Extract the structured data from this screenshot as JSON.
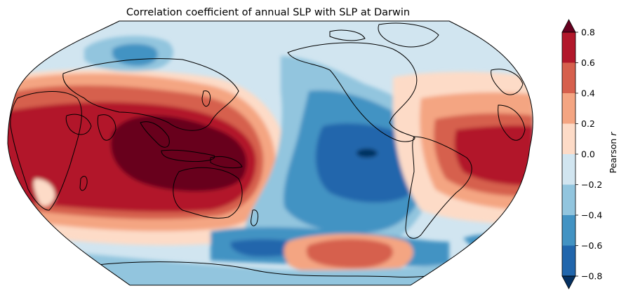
{
  "map": {
    "title": "Correlation coefficient of annual SLP with SLP at Darwin",
    "projection": "Robinson",
    "center_longitude": 180,
    "variable": "SLP",
    "reference_point": "Darwin"
  },
  "colorbar": {
    "label_main": "Pearson ",
    "label_symbol": "r",
    "min": -0.8,
    "max": 0.8,
    "extend": "both",
    "ticks": [
      "−0.8",
      "−0.6",
      "−0.4",
      "−0.2",
      "0.0",
      "0.2",
      "0.4",
      "0.6",
      "0.8"
    ],
    "levels": [
      {
        "range": "< -0.8",
        "color": "#053061"
      },
      {
        "range": "-0.8 to -0.6",
        "color": "#2166ac"
      },
      {
        "range": "-0.6 to -0.4",
        "color": "#4393c3"
      },
      {
        "range": "-0.4 to -0.2",
        "color": "#92c5de"
      },
      {
        "range": "-0.2 to 0.0",
        "color": "#d1e5f0"
      },
      {
        "range": "0.0 to 0.2",
        "color": "#fddbc7"
      },
      {
        "range": "0.2 to 0.4",
        "color": "#f4a582"
      },
      {
        "range": "0.4 to 0.6",
        "color": "#d6604d"
      },
      {
        "range": "0.6 to 0.8",
        "color": "#b2182b"
      },
      {
        "range": "> 0.8",
        "color": "#67001f"
      }
    ]
  }
}
